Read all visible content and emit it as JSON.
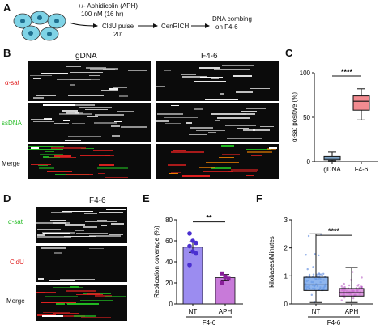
{
  "panelA": {
    "letter": "A",
    "treatment_line1": "+/- Aphidicolin (APH)",
    "treatment_line2": "100 nM (16 hr)",
    "pulse_line1": "CldU pulse",
    "pulse_line2": "20'",
    "cenrich": "CenRICH",
    "combing_line1": "DNA combing",
    "combing_line2": "on F4-6"
  },
  "panelB": {
    "letter": "B",
    "col_gdna": "gDNA",
    "col_f46": "F4-6",
    "row_asat": "α-sat",
    "row_ssdna": "ssDNA",
    "row_merge": "Merge",
    "colors": {
      "asat": "#e02020",
      "ssdna": "#22bb22",
      "merge": "#111111"
    }
  },
  "panelC": {
    "letter": "C",
    "chart_data": {
      "type": "box",
      "ylabel": "α-sat positive (%)",
      "ylim": [
        0,
        100
      ],
      "yticks": [
        "0",
        "50",
        "100"
      ],
      "categories": [
        "gDNA",
        "F4-6"
      ],
      "boxes": [
        {
          "category": "gDNA",
          "min": 1,
          "q1": 2,
          "median": 4,
          "q3": 6,
          "max": 11,
          "color": "#7fa6c9"
        },
        {
          "category": "F4-6",
          "min": 47,
          "q1": 58,
          "median": 68,
          "q3": 74,
          "max": 82,
          "color": "#f28b90"
        }
      ],
      "significance": "****"
    }
  },
  "panelD": {
    "letter": "D",
    "col_f46": "F4-6",
    "row_asat": "α-sat",
    "row_cldu": "CldU",
    "row_merge": "Merge",
    "colors": {
      "asat": "#22bb22",
      "cldu": "#e02020"
    }
  },
  "panelE": {
    "letter": "E",
    "chart_data": {
      "type": "bar",
      "ylabel": "Replication coverage (%)",
      "ylim": [
        0,
        80
      ],
      "yticks": [
        "0",
        "20",
        "40",
        "60",
        "80"
      ],
      "categories": [
        "NT",
        "APH"
      ],
      "group_label": "F4-6",
      "values": [
        54,
        25
      ],
      "errors": [
        5,
        3
      ],
      "colors": [
        "#9b8cf0",
        "#c87ad9"
      ],
      "points": [
        [
          67,
          60,
          58,
          55,
          50,
          48,
          37
        ],
        [
          29,
          26,
          24,
          20
        ]
      ],
      "significance": "**"
    }
  },
  "panelF": {
    "letter": "F",
    "chart_data": {
      "type": "box",
      "ylabel": "kilobases/Minutes",
      "ylim": [
        0,
        3
      ],
      "yticks": [
        "0",
        "1",
        "2",
        "3"
      ],
      "categories": [
        "NT",
        "APH"
      ],
      "group_label": "F4-6",
      "boxes": [
        {
          "category": "NT",
          "min": 0.05,
          "q1": 0.48,
          "median": 0.68,
          "q3": 0.95,
          "max": 2.5,
          "color": "#6a9ee8"
        },
        {
          "category": "APH",
          "min": 0.05,
          "q1": 0.28,
          "median": 0.4,
          "q3": 0.55,
          "max": 1.3,
          "color": "#d27ad6"
        }
      ],
      "significance": "****"
    }
  }
}
